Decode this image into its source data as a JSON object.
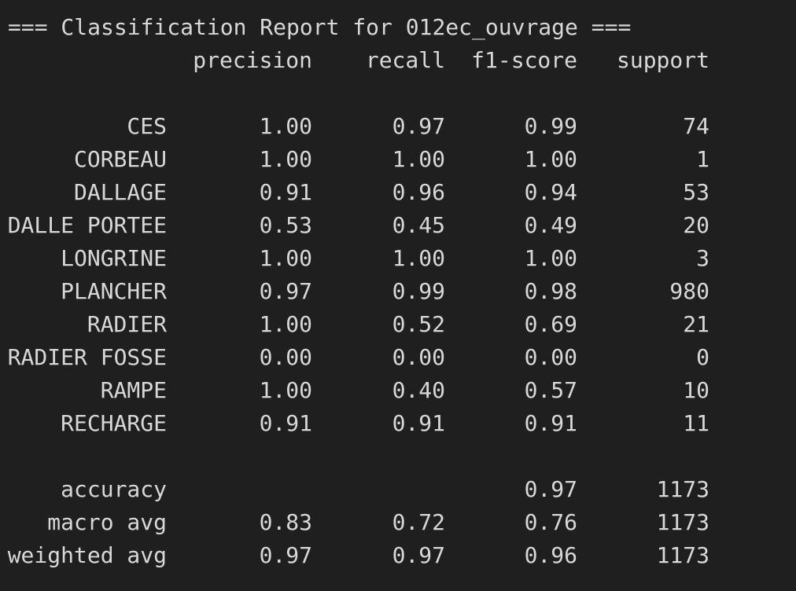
{
  "report": {
    "title": "=== Classification Report for 012ec_ouvrage ===",
    "headers": {
      "precision": "precision",
      "recall": "recall",
      "f1": "f1-score",
      "support": "support"
    },
    "rows": [
      {
        "label": "CES",
        "precision": "1.00",
        "recall": "0.97",
        "f1": "0.99",
        "support": "74"
      },
      {
        "label": "CORBEAU",
        "precision": "1.00",
        "recall": "1.00",
        "f1": "1.00",
        "support": "1"
      },
      {
        "label": "DALLAGE",
        "precision": "0.91",
        "recall": "0.96",
        "f1": "0.94",
        "support": "53"
      },
      {
        "label": "DALLE PORTEE",
        "precision": "0.53",
        "recall": "0.45",
        "f1": "0.49",
        "support": "20"
      },
      {
        "label": "LONGRINE",
        "precision": "1.00",
        "recall": "1.00",
        "f1": "1.00",
        "support": "3"
      },
      {
        "label": "PLANCHER",
        "precision": "0.97",
        "recall": "0.99",
        "f1": "0.98",
        "support": "980"
      },
      {
        "label": "RADIER",
        "precision": "1.00",
        "recall": "0.52",
        "f1": "0.69",
        "support": "21"
      },
      {
        "label": "RADIER FOSSE",
        "precision": "0.00",
        "recall": "0.00",
        "f1": "0.00",
        "support": "0"
      },
      {
        "label": "RAMPE",
        "precision": "1.00",
        "recall": "0.40",
        "f1": "0.57",
        "support": "10"
      },
      {
        "label": "RECHARGE",
        "precision": "0.91",
        "recall": "0.91",
        "f1": "0.91",
        "support": "11"
      }
    ],
    "summary": [
      {
        "label": "accuracy",
        "precision": "",
        "recall": "",
        "f1": "0.97",
        "support": "1173"
      },
      {
        "label": "macro avg",
        "precision": "0.83",
        "recall": "0.72",
        "f1": "0.76",
        "support": "1173"
      },
      {
        "label": "weighted avg",
        "precision": "0.97",
        "recall": "0.97",
        "f1": "0.96",
        "support": "1173"
      }
    ]
  },
  "colors": {
    "background": "#1f1f1f",
    "text": "#d8d8d8"
  }
}
